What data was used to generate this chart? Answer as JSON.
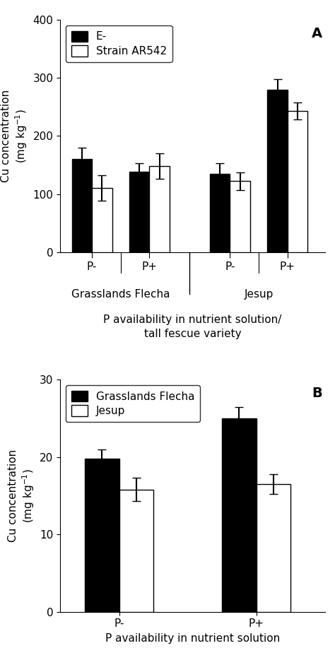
{
  "panel_A": {
    "title_label": "A",
    "group_labels": [
      "P-",
      "P+",
      "P-",
      "P+"
    ],
    "variety_labels": [
      "Grasslands Flecha",
      "Jesup"
    ],
    "e_minus_values": [
      160,
      138,
      135,
      280
    ],
    "e_minus_errors": [
      20,
      15,
      18,
      18
    ],
    "ar542_values": [
      110,
      148,
      122,
      243
    ],
    "ar542_errors": [
      22,
      22,
      15,
      15
    ],
    "ylabel": "Cu concentration\n(mg kg⁻¹)",
    "xlabel1": "P availability in nutrient solution/",
    "xlabel2": "tall fescue variety",
    "ylim": [
      0,
      400
    ],
    "yticks": [
      0,
      100,
      200,
      300,
      400
    ],
    "legend_labels": [
      "E-",
      "Strain AR542"
    ],
    "bar_width": 0.35,
    "group_centers": [
      0.6,
      1.6,
      3.0,
      4.0
    ],
    "separator_x": 2.3,
    "xlim": [
      0.05,
      4.65
    ]
  },
  "panel_B": {
    "title_label": "B",
    "group_labels": [
      "P-",
      "P+"
    ],
    "flecha_values": [
      19.8,
      25.0
    ],
    "flecha_errors": [
      1.2,
      1.5
    ],
    "jesup_values": [
      15.8,
      16.5
    ],
    "jesup_errors": [
      1.5,
      1.3
    ],
    "ylabel": "Cu concentration\n(mg kg⁻¹)",
    "xlabel": "P availability in nutrient solution",
    "ylim": [
      0,
      30
    ],
    "yticks": [
      0,
      10,
      20,
      30
    ],
    "legend_labels": [
      "Grasslands Flecha",
      "Jesup"
    ],
    "bar_width": 0.35,
    "group_centers": [
      0.8,
      2.2
    ],
    "xlim": [
      0.2,
      2.9
    ]
  },
  "figure": {
    "facecolor": "#ffffff",
    "fontsize": 11,
    "label_fontsize": 14
  }
}
